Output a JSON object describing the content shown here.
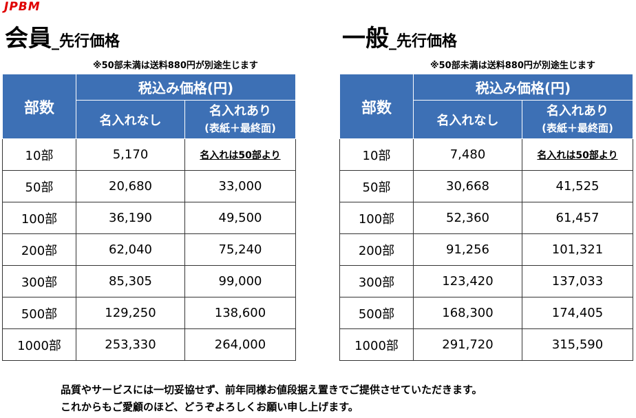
{
  "logo": "JPBM",
  "tables": [
    {
      "title": "会員",
      "title_suffix": "_先行価格",
      "note": "※50部未満は送料880円が別途生じます",
      "headers": {
        "quantity": "部数",
        "price_group": "税込み価格(円)",
        "without_name": "名入れなし",
        "with_name": "名入れあり",
        "with_name_detail": "(表紙＋最終面)"
      },
      "rows": [
        [
          "10部",
          "5,170",
          "名入れは50部より"
        ],
        [
          "50部",
          "20,680",
          "33,000"
        ],
        [
          "100部",
          "36,190",
          "49,500"
        ],
        [
          "200部",
          "62,040",
          "75,240"
        ],
        [
          "300部",
          "85,305",
          "99,000"
        ],
        [
          "500部",
          "129,250",
          "138,600"
        ],
        [
          "1000部",
          "253,330",
          "264,000"
        ]
      ]
    },
    {
      "title": "一般",
      "title_suffix": "_先行価格",
      "note": "※50部未満は送料880円が別途生じます",
      "headers": {
        "quantity": "部数",
        "price_group": "税込み価格(円)",
        "without_name": "名入れなし",
        "with_name": "名入れあり",
        "with_name_detail": "(表紙＋最終面)"
      },
      "rows": [
        [
          "10部",
          "7,480",
          "名入れは50部より"
        ],
        [
          "50部",
          "30,668",
          "41,525"
        ],
        [
          "100部",
          "52,360",
          "61,457"
        ],
        [
          "200部",
          "91,256",
          "101,321"
        ],
        [
          "300部",
          "123,420",
          "137,033"
        ],
        [
          "500部",
          "168,300",
          "174,405"
        ],
        [
          "1000部",
          "291,720",
          "315,590"
        ]
      ]
    }
  ],
  "footer": [
    "品質やサービスには一切妥協せず、前年同様お値段据え置きでご提供させていただきます。",
    "これからもご愛顧のほど、どうぞよろしくお願い申し上げます。"
  ]
}
